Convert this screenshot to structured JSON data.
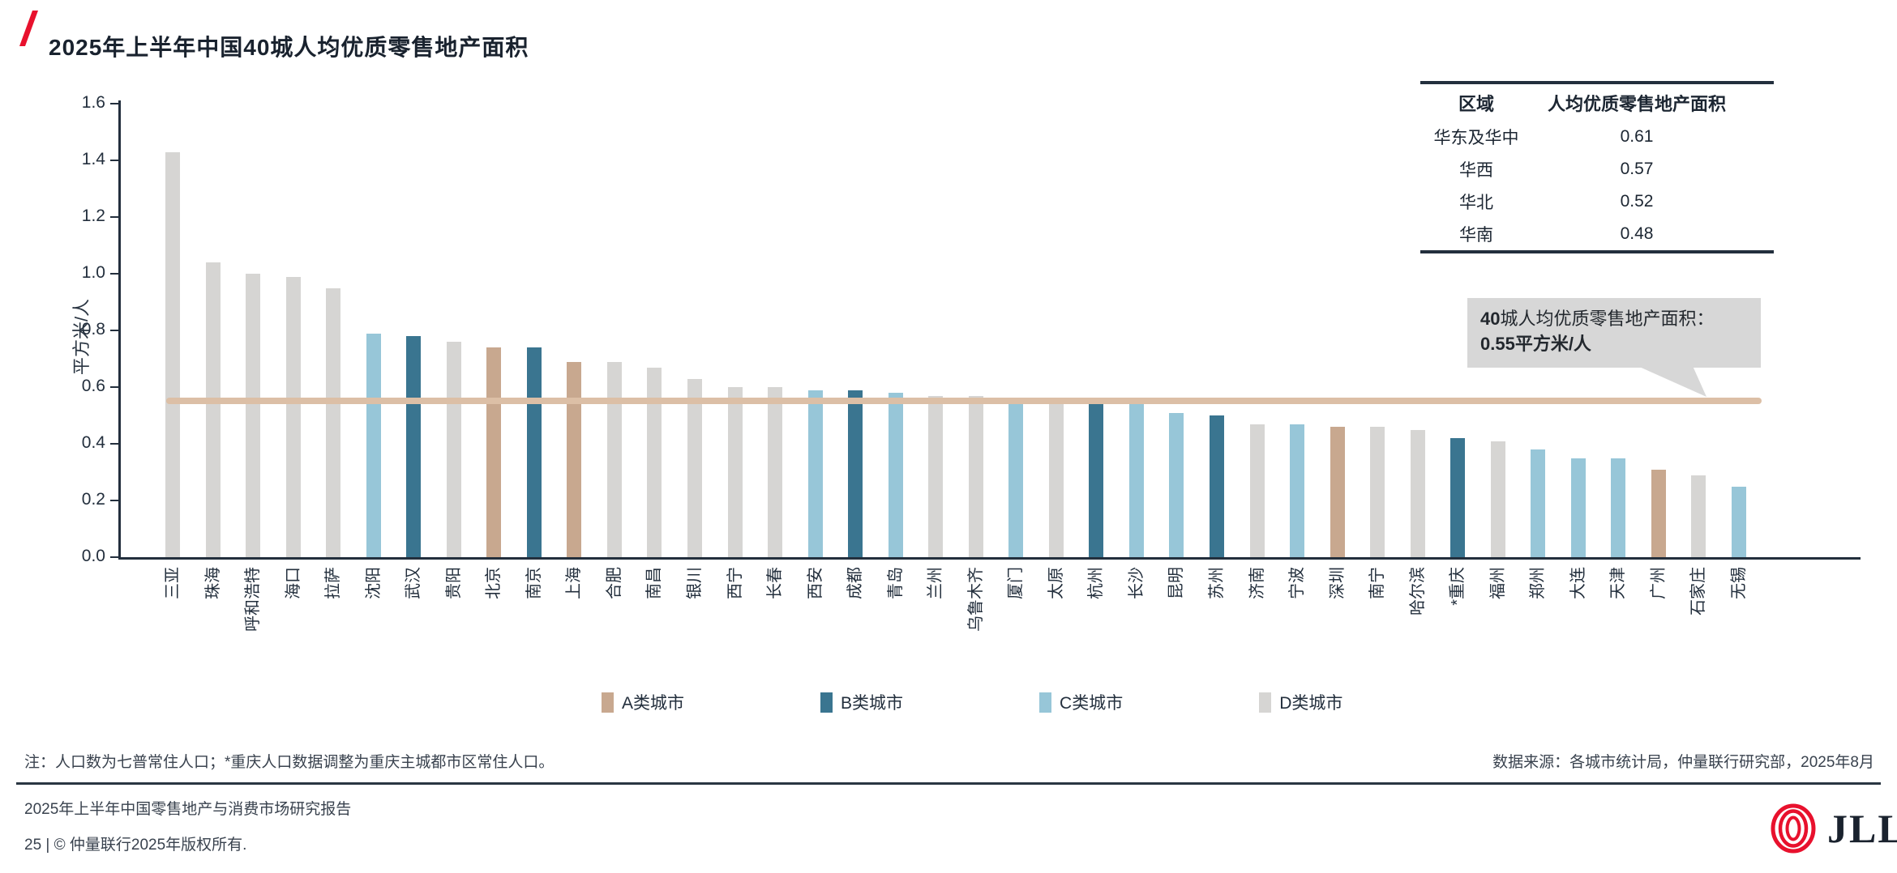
{
  "title": "2025年上半年中国40城人均优质零售地产面积",
  "chart": {
    "ylabel": "平方米/人",
    "yticks": [
      "0.0",
      "0.2",
      "0.4",
      "0.6",
      "0.8",
      "1.0",
      "1.2",
      "1.4",
      "1.6"
    ]
  },
  "chart_data": {
    "type": "bar",
    "title": "2025年上半年中国40城人均优质零售地产面积",
    "xlabel": "",
    "ylabel": "平方米/人",
    "ylim": [
      0,
      1.6
    ],
    "grid": false,
    "legend_position": "bottom",
    "categories": [
      "三亚",
      "珠海",
      "呼和浩特",
      "海口",
      "拉萨",
      "沈阳",
      "武汉",
      "贵阳",
      "北京",
      "南京",
      "上海",
      "合肥",
      "南昌",
      "银川",
      "西宁",
      "长春",
      "西安",
      "成都",
      "青岛",
      "兰州",
      "乌鲁木齐",
      "厦门",
      "太原",
      "杭州",
      "长沙",
      "昆明",
      "苏州",
      "济南",
      "宁波",
      "深圳",
      "南宁",
      "哈尔滨",
      "*重庆",
      "福州",
      "郑州",
      "大连",
      "天津",
      "广州",
      "石家庄",
      "无锡"
    ],
    "values": [
      1.43,
      1.04,
      1.0,
      0.99,
      0.95,
      0.79,
      0.78,
      0.76,
      0.74,
      0.74,
      0.69,
      0.69,
      0.67,
      0.63,
      0.6,
      0.6,
      0.59,
      0.59,
      0.58,
      0.57,
      0.57,
      0.56,
      0.55,
      0.55,
      0.54,
      0.51,
      0.5,
      0.47,
      0.47,
      0.46,
      0.46,
      0.45,
      0.42,
      0.41,
      0.38,
      0.35,
      0.35,
      0.31,
      0.29,
      0.25
    ],
    "city_class": [
      "D",
      "D",
      "D",
      "D",
      "D",
      "C",
      "B",
      "D",
      "A",
      "B",
      "A",
      "D",
      "D",
      "D",
      "D",
      "D",
      "C",
      "B",
      "C",
      "D",
      "D",
      "C",
      "D",
      "B",
      "C",
      "C",
      "B",
      "D",
      "C",
      "A",
      "D",
      "D",
      "B",
      "D",
      "C",
      "C",
      "C",
      "A",
      "D",
      "C"
    ],
    "class_colors": {
      "A": "#c8a88f",
      "B": "#3a7590",
      "C": "#97c6d8",
      "D": "#d6d5d3"
    },
    "legend": [
      "A类城市",
      "B类城市",
      "C类城市",
      "D类城市"
    ],
    "legend_classes": [
      "A",
      "B",
      "C",
      "D"
    ],
    "reference_line": {
      "value": 0.55,
      "color": "#dcbfa6"
    }
  },
  "region_table": {
    "col1_header": "区域",
    "col2_header": "人均优质零售地产面积",
    "rows": [
      {
        "region": "华东及华中",
        "value": "0.61"
      },
      {
        "region": "华西",
        "value": "0.57"
      },
      {
        "region": "华北",
        "value": "0.52"
      },
      {
        "region": "华南",
        "value": "0.48"
      }
    ]
  },
  "callout": {
    "bold_prefix": "40",
    "line1_rest": "城人均优质零售地产面积：",
    "line2": "0.55平方米/人"
  },
  "footnote": "注：人口数为七普常住人口；*重庆人口数据调整为重庆主城都市区常住人口。",
  "source": "数据来源：各城市统计局，仲量联行研究部，2025年8月",
  "report_title": "2025年上半年中国零售地产与消费市场研究报告",
  "page_copyright": "25 | © 仲量联行2025年版权所有.",
  "logo_text": "JLL",
  "colors": {
    "accent_red": "#e8112d",
    "axis": "#232f3d",
    "bubble_bg": "#d7d7d7",
    "reference_line": "#dcbfa6"
  }
}
